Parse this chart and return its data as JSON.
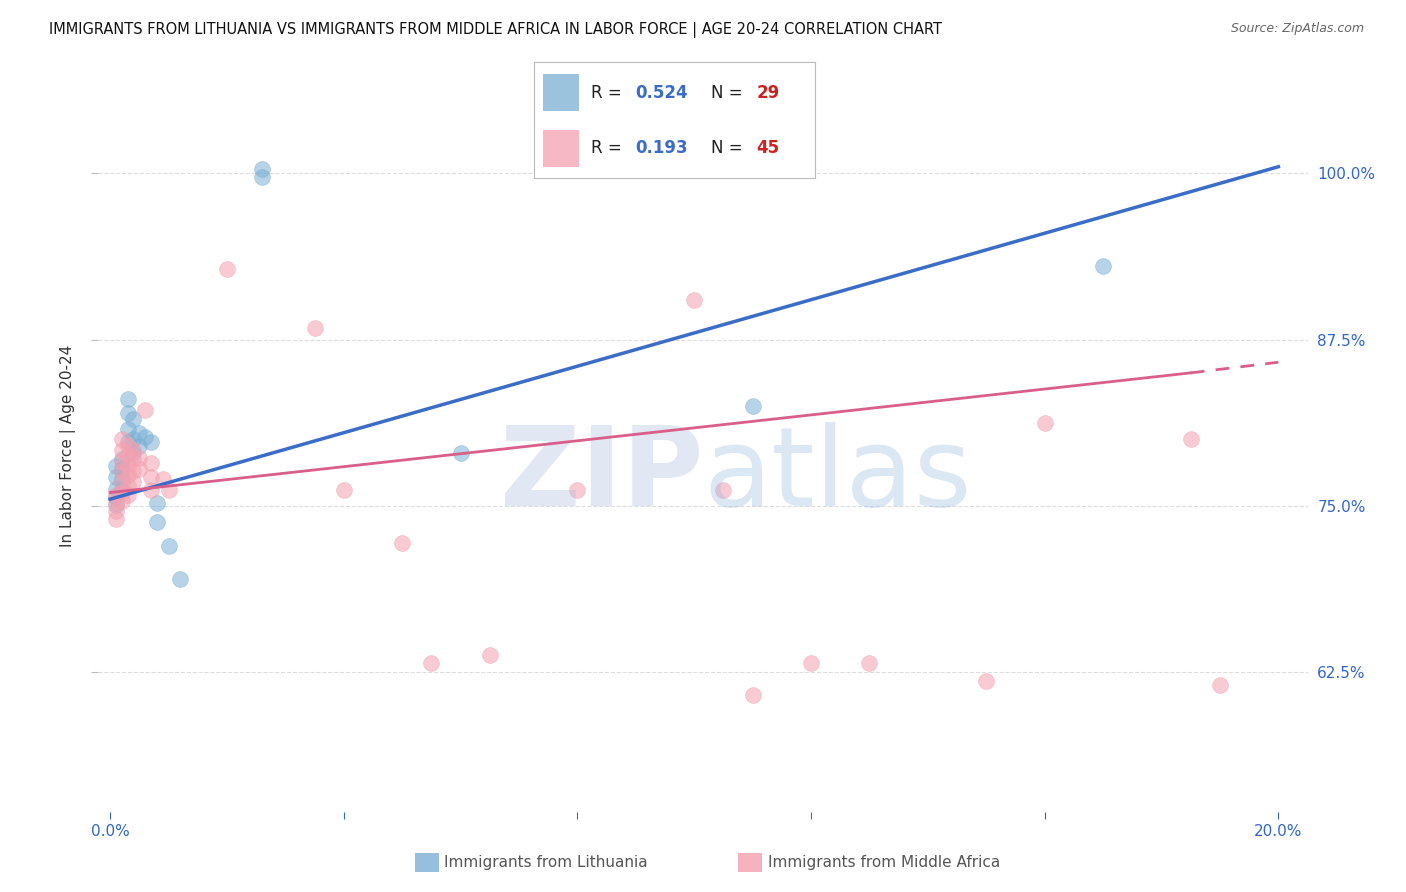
{
  "title": "IMMIGRANTS FROM LITHUANIA VS IMMIGRANTS FROM MIDDLE AFRICA IN LABOR FORCE | AGE 20-24 CORRELATION CHART",
  "source": "Source: ZipAtlas.com",
  "ylabel": "In Labor Force | Age 20-24",
  "xaxis_label_blue": "Immigrants from Lithuania",
  "xaxis_label_pink": "Immigrants from Middle Africa",
  "xlim": [
    -0.002,
    0.205
  ],
  "ylim": [
    0.52,
    1.07
  ],
  "y_tick_positions": [
    0.625,
    0.75,
    0.875,
    1.0
  ],
  "y_tick_labels": [
    "62.5%",
    "75.0%",
    "87.5%",
    "100.0%"
  ],
  "x_tick_positions": [
    0.0,
    0.04,
    0.08,
    0.12,
    0.16,
    0.2
  ],
  "x_tick_labels": [
    "0.0%",
    "",
    "",
    "",
    "",
    "20.0%"
  ],
  "blue_R": 0.524,
  "blue_N": 29,
  "pink_R": 0.193,
  "pink_N": 45,
  "blue_color": "#7BAFD4",
  "pink_color": "#F4A0B0",
  "blue_line_color": "#3A6CC8",
  "pink_line_color": "#D95F8A",
  "blue_line": [
    [
      0.0,
      0.755
    ],
    [
      0.2,
      1.005
    ]
  ],
  "pink_line_solid": [
    [
      0.0,
      0.76
    ],
    [
      0.185,
      0.85
    ]
  ],
  "pink_line_dash": [
    [
      0.185,
      0.85
    ],
    [
      0.2,
      0.858
    ]
  ],
  "blue_scatter": [
    [
      0.001,
      0.78
    ],
    [
      0.001,
      0.772
    ],
    [
      0.001,
      0.763
    ],
    [
      0.001,
      0.757
    ],
    [
      0.001,
      0.751
    ],
    [
      0.002,
      0.785
    ],
    [
      0.002,
      0.778
    ],
    [
      0.002,
      0.77
    ],
    [
      0.002,
      0.762
    ],
    [
      0.003,
      0.83
    ],
    [
      0.003,
      0.82
    ],
    [
      0.003,
      0.808
    ],
    [
      0.003,
      0.798
    ],
    [
      0.004,
      0.815
    ],
    [
      0.004,
      0.8
    ],
    [
      0.004,
      0.79
    ],
    [
      0.005,
      0.805
    ],
    [
      0.005,
      0.795
    ],
    [
      0.006,
      0.802
    ],
    [
      0.007,
      0.798
    ],
    [
      0.008,
      0.752
    ],
    [
      0.008,
      0.738
    ],
    [
      0.01,
      0.72
    ],
    [
      0.012,
      0.695
    ],
    [
      0.026,
      1.003
    ],
    [
      0.026,
      0.997
    ],
    [
      0.06,
      0.79
    ],
    [
      0.11,
      0.825
    ],
    [
      0.17,
      0.93
    ]
  ],
  "pink_scatter": [
    [
      0.001,
      0.758
    ],
    [
      0.001,
      0.752
    ],
    [
      0.001,
      0.746
    ],
    [
      0.001,
      0.74
    ],
    [
      0.002,
      0.8
    ],
    [
      0.002,
      0.792
    ],
    [
      0.002,
      0.784
    ],
    [
      0.002,
      0.776
    ],
    [
      0.002,
      0.768
    ],
    [
      0.002,
      0.76
    ],
    [
      0.002,
      0.754
    ],
    [
      0.003,
      0.795
    ],
    [
      0.003,
      0.788
    ],
    [
      0.003,
      0.78
    ],
    [
      0.003,
      0.773
    ],
    [
      0.003,
      0.765
    ],
    [
      0.003,
      0.758
    ],
    [
      0.004,
      0.792
    ],
    [
      0.004,
      0.785
    ],
    [
      0.004,
      0.776
    ],
    [
      0.004,
      0.768
    ],
    [
      0.005,
      0.786
    ],
    [
      0.005,
      0.778
    ],
    [
      0.006,
      0.822
    ],
    [
      0.007,
      0.782
    ],
    [
      0.007,
      0.772
    ],
    [
      0.007,
      0.762
    ],
    [
      0.009,
      0.77
    ],
    [
      0.01,
      0.762
    ],
    [
      0.02,
      0.928
    ],
    [
      0.035,
      0.884
    ],
    [
      0.04,
      0.762
    ],
    [
      0.05,
      0.722
    ],
    [
      0.055,
      0.632
    ],
    [
      0.065,
      0.638
    ],
    [
      0.08,
      0.762
    ],
    [
      0.1,
      0.905
    ],
    [
      0.105,
      0.762
    ],
    [
      0.11,
      0.608
    ],
    [
      0.12,
      0.632
    ],
    [
      0.13,
      0.632
    ],
    [
      0.15,
      0.618
    ],
    [
      0.16,
      0.812
    ],
    [
      0.185,
      0.8
    ],
    [
      0.19,
      0.615
    ]
  ],
  "background_color": "#FFFFFF",
  "grid_color": "#DDDDDD",
  "watermark_zip_color": "#AABBDD",
  "watermark_atlas_color": "#99BBDD",
  "watermark_alpha": 0.35,
  "legend_R_color": "#3A6CC8",
  "legend_N_color": "#CC2222",
  "title_fontsize": 11,
  "source_fontsize": 9
}
